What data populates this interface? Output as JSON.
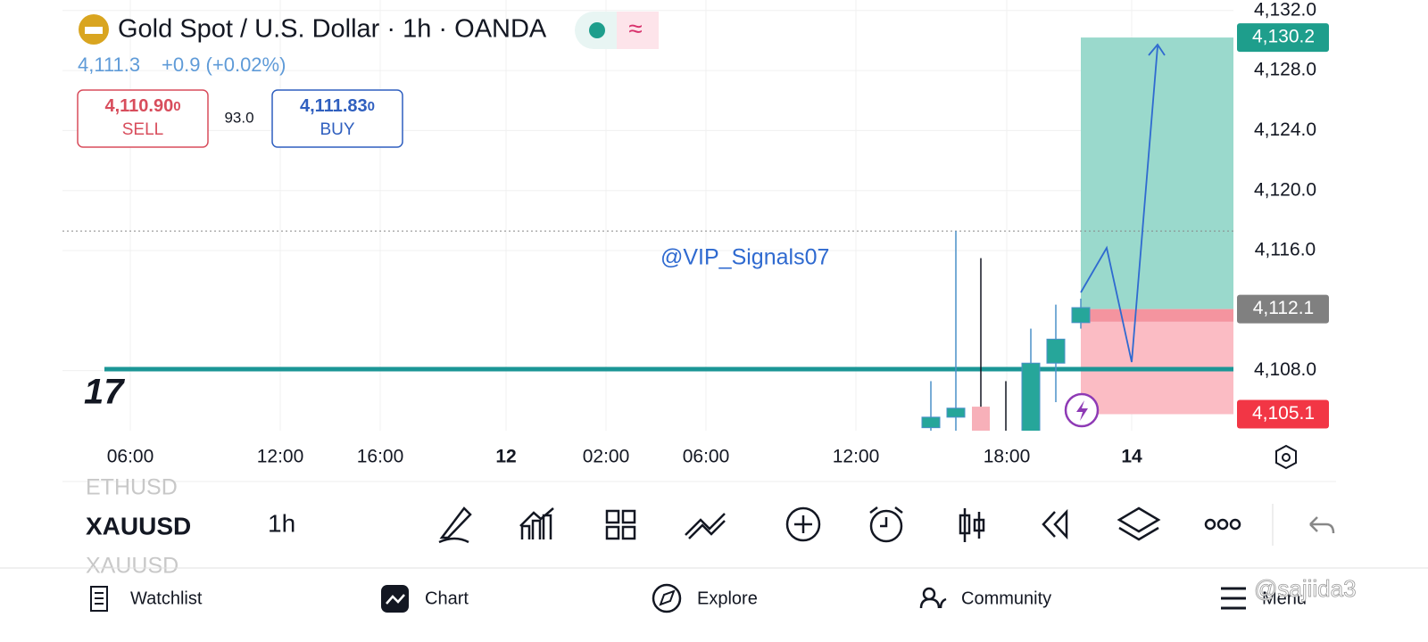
{
  "header": {
    "title": "Gold Spot / U.S. Dollar · 1h · OANDA",
    "price": "4,111.3",
    "change": "+0.9 (+0.02%)"
  },
  "trade": {
    "sell_price": "4,110.90",
    "sell_price_small": "0",
    "sell_label": "SELL",
    "spread": "93.0",
    "buy_price": "4,111.83",
    "buy_price_small": "0",
    "buy_label": "BUY"
  },
  "chart_data": {
    "type": "candlestick",
    "annotation": "@VIP_Signals07",
    "ylim": [
      4104,
      4132.7
    ],
    "yticks": [
      {
        "value": 4108,
        "label": "4,108.0"
      },
      {
        "value": 4116,
        "label": "4,116.0"
      },
      {
        "value": 4120,
        "label": "4,120.0"
      },
      {
        "value": 4124,
        "label": "4,124.0"
      },
      {
        "value": 4128,
        "label": "4,128.0"
      },
      {
        "value": 4132,
        "label": "4,132.0"
      }
    ],
    "xticks": [
      "06:00",
      "12:00",
      "16:00",
      "12",
      "02:00",
      "06:00",
      "12:00",
      "18:00",
      "14"
    ],
    "up_color": "#26a69a",
    "down_color": "#f7b0b9",
    "candles": [
      {
        "open": 4104.2,
        "high": 4107.3,
        "low": 4103.5,
        "close": 4104.9
      },
      {
        "open": 4104.9,
        "high": 4117.3,
        "low": 4103.5,
        "close": 4105.5
      },
      {
        "open": 4105.6,
        "high": 4115.5,
        "low": 4103.5,
        "close": 4104.0
      },
      {
        "open": 4104.0,
        "high": 4107.3,
        "low": 4103.5,
        "close": 4104.0
      },
      {
        "open": 4103.5,
        "high": 4110.8,
        "low": 4103.5,
        "close": 4108.5
      },
      {
        "open": 4108.5,
        "high": 4112.4,
        "low": 4105.9,
        "close": 4110.1
      },
      {
        "open": 4111.2,
        "high": 4112.8,
        "low": 4110.8,
        "close": 4112.2
      }
    ],
    "horizontal_line": 4108.1,
    "dotted_line": 4117.3,
    "position": {
      "target": {
        "value": 4130.2,
        "label": "4,130.2"
      },
      "entry": {
        "value": 4112.1,
        "label": "4,112.1"
      },
      "stop": {
        "value": 4105.1,
        "label": "4,105.1"
      }
    }
  },
  "toolbar": {
    "symbol_prev": "ETHUSD",
    "symbol": "XAUUSD",
    "symbol_next": "XAUUSD",
    "interval": "1h"
  },
  "nav": [
    "Watchlist",
    "Chart",
    "Explore",
    "Community",
    "Menu"
  ],
  "watermark": "@sajiida3"
}
